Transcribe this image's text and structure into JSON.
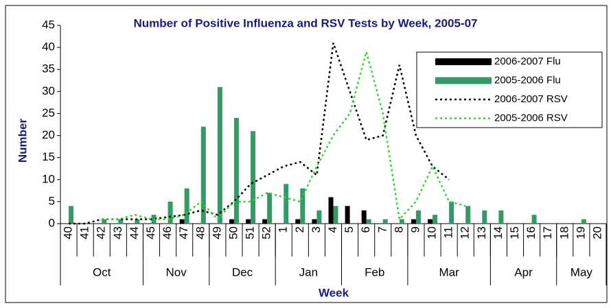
{
  "chart_data": {
    "type": "bar",
    "title": "Number of Positive Influenza and RSV Tests by Week, 2005-07",
    "y_label": "Number",
    "x_label": "Week",
    "categories": [
      "40",
      "41",
      "42",
      "43",
      "44",
      "45",
      "46",
      "47",
      "48",
      "49",
      "50",
      "51",
      "52",
      "1",
      "2",
      "3",
      "4",
      "5",
      "6",
      "7",
      "8",
      "9",
      "10",
      "11",
      "12",
      "13",
      "14",
      "15",
      "16",
      "17",
      "18",
      "19",
      "20"
    ],
    "groups": [
      {
        "label": "Oct",
        "span": 5
      },
      {
        "label": "Nov",
        "span": 4
      },
      {
        "label": "Dec",
        "span": 4
      },
      {
        "label": "Jan",
        "span": 4
      },
      {
        "label": "Feb",
        "span": 4
      },
      {
        "label": "Mar",
        "span": 5
      },
      {
        "label": "Apr",
        "span": 4
      },
      {
        "label": "May",
        "span": 3
      }
    ],
    "ylim": [
      0,
      45
    ],
    "yticks": [
      0,
      5,
      10,
      15,
      20,
      25,
      30,
      35,
      40,
      45
    ],
    "legend": "upper right",
    "series": [
      {
        "name": "2006-2007 Flu",
        "type": "bar",
        "color": "#000000",
        "values": [
          0,
          0,
          0,
          0,
          0,
          0,
          0,
          1,
          0,
          0,
          1,
          1,
          1,
          0,
          1,
          1,
          6,
          4,
          3,
          0,
          0,
          1,
          1,
          0,
          0,
          0,
          0,
          0,
          0,
          0,
          0,
          0,
          0
        ]
      },
      {
        "name": "2005-2006 Flu",
        "type": "bar",
        "color": "#339966",
        "values": [
          4,
          0,
          1,
          1,
          1,
          2,
          5,
          8,
          22,
          31,
          24,
          21,
          7,
          9,
          8,
          3,
          4,
          0,
          1,
          1,
          1,
          3,
          2,
          5,
          4,
          3,
          3,
          0,
          2,
          0,
          0,
          1,
          0
        ]
      },
      {
        "name": "2006-2007 RSV",
        "type": "line",
        "color": "#000000",
        "values": [
          0,
          0,
          1,
          1,
          1,
          1,
          1.5,
          2,
          3,
          2,
          5,
          9,
          11,
          13,
          14,
          11,
          41,
          30,
          19,
          20,
          36,
          20,
          13,
          10,
          null,
          null,
          null,
          null,
          null,
          null,
          null,
          null,
          null
        ]
      },
      {
        "name": "2005-2006 RSV",
        "type": "line",
        "color": "#22dd22",
        "values": [
          null,
          null,
          1,
          1,
          2,
          1,
          1,
          2,
          5,
          1,
          5,
          5,
          7,
          6,
          5,
          13,
          20,
          25,
          39,
          25,
          1,
          5,
          13,
          5,
          4,
          null,
          null,
          null,
          null,
          null,
          null,
          null,
          null
        ]
      }
    ]
  }
}
